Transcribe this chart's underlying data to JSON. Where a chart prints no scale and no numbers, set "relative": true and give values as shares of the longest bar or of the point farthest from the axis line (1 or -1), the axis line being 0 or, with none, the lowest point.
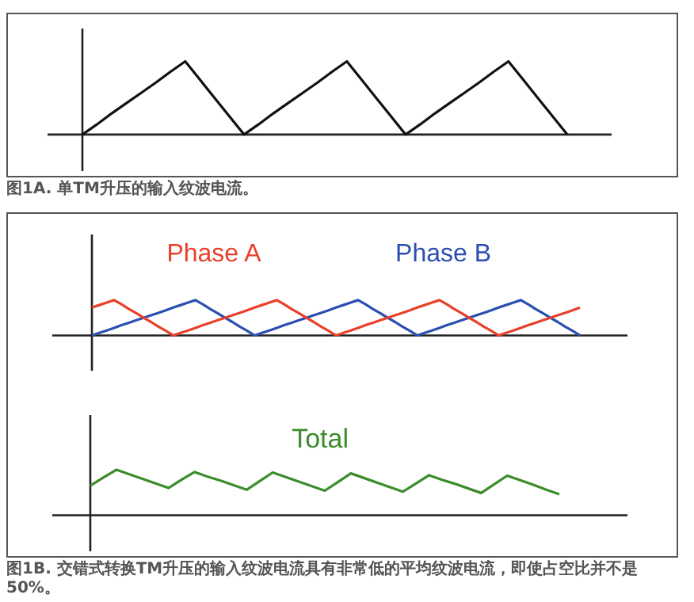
{
  "chart_data": [
    {
      "type": "line",
      "relative": true,
      "marker": "none",
      "line_style": "solid",
      "legend": false,
      "categories": [
        null,
        null,
        null,
        null,
        null,
        null,
        null,
        null,
        null,
        null,
        null,
        null,
        null,
        null,
        null,
        null,
        null,
        null,
        null,
        null,
        null,
        null,
        null,
        null,
        null,
        null,
        null,
        null,
        null,
        null,
        null,
        null,
        null,
        null
      ],
      "series": [
        {
          "color": "#111111",
          "values": [
            0,
            0.14,
            0.29,
            0.43,
            0.57,
            0.71,
            0.86,
            1,
            0.75,
            0.5,
            0.25,
            0,
            0.14,
            0.29,
            0.43,
            0.57,
            0.71,
            0.86,
            1,
            0.75,
            0.5,
            0.25,
            0,
            0.14,
            0.29,
            0.43,
            0.57,
            0.71,
            0.86,
            1,
            0.75,
            0.5,
            0.25,
            0
          ]
        }
      ],
      "annotations": [
        "图1A. 单TM升压的输入纹波电流。"
      ]
    },
    {
      "type": "line",
      "relative": true,
      "marker": "none",
      "line_style": "solid",
      "legend": false,
      "categories": [
        null,
        null,
        null,
        null,
        null,
        null,
        null,
        null,
        null,
        null,
        null,
        null,
        null,
        null,
        null,
        null,
        null,
        null,
        null,
        null,
        null,
        null,
        null,
        null,
        null,
        null,
        null,
        null,
        null,
        null,
        null,
        null,
        null,
        null,
        null,
        null,
        null,
        null,
        null,
        null,
        null,
        null,
        null,
        null,
        null,
        null,
        null,
        null,
        null,
        null,
        null,
        null,
        null,
        null,
        null,
        null,
        null,
        null,
        null,
        null,
        null,
        null,
        null,
        null,
        null,
        null,
        null
      ],
      "series": [
        {
          "name": "Phase A",
          "color": "#e8402a",
          "values": [
            0.79,
            0.86,
            0.93,
            1,
            0.88,
            0.75,
            0.63,
            0.5,
            0.38,
            0.25,
            0.13,
            0,
            0.07,
            0.14,
            0.21,
            0.29,
            0.36,
            0.43,
            0.5,
            0.57,
            0.64,
            0.71,
            0.79,
            0.86,
            0.93,
            1,
            0.88,
            0.75,
            0.63,
            0.5,
            0.38,
            0.25,
            0.13,
            0,
            0.07,
            0.14,
            0.21,
            0.29,
            0.36,
            0.43,
            0.5,
            0.57,
            0.64,
            0.71,
            0.79,
            0.86,
            0.93,
            1,
            0.88,
            0.75,
            0.63,
            0.5,
            0.38,
            0.25,
            0.13,
            0,
            0.07,
            0.14,
            0.21,
            0.29,
            0.36,
            0.43,
            0.5,
            0.57,
            0.64,
            0.71,
            0.79
          ]
        },
        {
          "name": "Phase B",
          "color": "#2a4fb0",
          "values": [
            0,
            0.07,
            0.14,
            0.21,
            0.29,
            0.36,
            0.43,
            0.5,
            0.57,
            0.64,
            0.71,
            0.79,
            0.86,
            0.93,
            1,
            0.88,
            0.75,
            0.63,
            0.5,
            0.38,
            0.25,
            0.13,
            0,
            0.07,
            0.14,
            0.21,
            0.29,
            0.36,
            0.43,
            0.5,
            0.57,
            0.64,
            0.71,
            0.79,
            0.86,
            0.93,
            1,
            0.88,
            0.75,
            0.63,
            0.5,
            0.38,
            0.25,
            0.13,
            0,
            0.07,
            0.14,
            0.21,
            0.29,
            0.36,
            0.43,
            0.5,
            0.57,
            0.64,
            0.71,
            0.79,
            0.86,
            0.93,
            1,
            0.88,
            0.75,
            0.63,
            0.5,
            0.38,
            0.25,
            0.13,
            0
          ]
        }
      ]
    },
    {
      "type": "line",
      "relative": true,
      "marker": "none",
      "line_style": "solid",
      "legend": false,
      "categories": [
        null,
        null,
        null,
        null,
        null,
        null,
        null,
        null,
        null,
        null,
        null,
        null,
        null,
        null,
        null,
        null,
        null,
        null,
        null,
        null,
        null,
        null,
        null,
        null,
        null,
        null,
        null,
        null,
        null,
        null,
        null,
        null,
        null,
        null,
        null,
        null,
        null
      ],
      "series": [
        {
          "name": "Total",
          "color": "#3c8c2c",
          "values": [
            0.65,
            0.83,
            1,
            0.9,
            0.8,
            0.7,
            0.6,
            0.78,
            0.95,
            0.85,
            0.76,
            0.66,
            0.56,
            0.75,
            0.94,
            0.84,
            0.74,
            0.64,
            0.54,
            0.73,
            0.92,
            0.82,
            0.72,
            0.62,
            0.52,
            0.7,
            0.88,
            0.78,
            0.69,
            0.59,
            0.49,
            0.68,
            0.87,
            0.77,
            0.67,
            0.56,
            0.46
          ]
        }
      ],
      "annotations": [
        "图1B. 交错式转换TM升压的输入纹波电流具有非常低的平均纹波电流，即使占空比并不是50%。"
      ]
    }
  ]
}
